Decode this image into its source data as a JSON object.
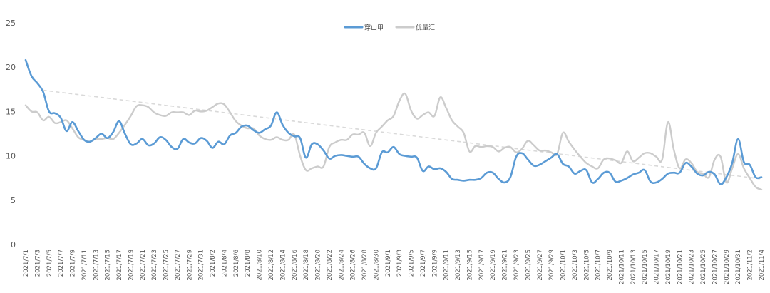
{
  "chart_data": {
    "type": "line",
    "title": "",
    "xlabel": "",
    "ylabel": "",
    "ylim": [
      0,
      25
    ],
    "yticks": [
      0,
      5,
      10,
      15,
      20,
      25
    ],
    "grid": false,
    "legend_position": "top-center",
    "x_start": "2021/7/1",
    "x_tick_labels": [
      "2021/7/1",
      "2021/7/3",
      "2021/7/5",
      "2021/7/7",
      "2021/7/9",
      "2021/7/11",
      "2021/7/13",
      "2021/7/15",
      "2021/7/17",
      "2021/7/19",
      "2021/7/21",
      "2021/7/23",
      "2021/7/25",
      "2021/7/27",
      "2021/7/29",
      "2021/7/31",
      "2021/8/2",
      "2021/8/4",
      "2021/8/6",
      "2021/8/8",
      "2021/8/10",
      "2021/8/12",
      "2021/8/14",
      "2021/8/16",
      "2021/8/18",
      "2021/8/20",
      "2021/8/22",
      "2021/8/24",
      "2021/8/26",
      "2021/8/28",
      "2021/8/30",
      "2021/9/1",
      "2021/9/3",
      "2021/9/5",
      "2021/9/7",
      "2021/9/9",
      "2021/9/11",
      "2021/9/13",
      "2021/9/15",
      "2021/9/17",
      "2021/9/19",
      "2021/9/21",
      "2021/9/23",
      "2021/9/25",
      "2021/9/27",
      "2021/9/29",
      "2021/10/1",
      "2021/10/3",
      "2021/10/5",
      "2021/10/7",
      "2021/10/9",
      "2021/10/11",
      "2021/10/13",
      "2021/10/15",
      "2021/10/17",
      "2021/10/19",
      "2021/10/21",
      "2021/10/23",
      "2021/10/25",
      "2021/10/27",
      "2021/10/29",
      "2021/10/31",
      "2021/11/2",
      "2021/11/4"
    ],
    "series": [
      {
        "name": "穿山甲",
        "color": "#5b9bd5",
        "values": [
          20.8,
          19.0,
          18.2,
          17.2,
          15.0,
          14.8,
          14.3,
          12.8,
          13.8,
          12.8,
          11.8,
          11.6,
          12.0,
          12.5,
          12.0,
          12.7,
          13.9,
          12.5,
          11.3,
          11.4,
          11.9,
          11.2,
          11.4,
          12.1,
          11.8,
          11.0,
          10.8,
          11.9,
          11.5,
          11.4,
          12.0,
          11.7,
          10.9,
          11.6,
          11.3,
          12.3,
          12.6,
          13.3,
          13.4,
          12.9,
          12.6,
          13.0,
          13.4,
          14.9,
          13.5,
          12.6,
          12.2,
          12.0,
          9.8,
          11.3,
          11.3,
          10.6,
          9.7,
          10.0,
          10.1,
          10.0,
          9.9,
          9.9,
          9.1,
          8.6,
          8.6,
          10.4,
          10.4,
          11.0,
          10.2,
          10.0,
          9.9,
          9.8,
          8.3,
          8.8,
          8.5,
          8.6,
          8.2,
          7.4,
          7.3,
          7.2,
          7.3,
          7.3,
          7.5,
          8.1,
          8.1,
          7.4,
          7.0,
          7.6,
          9.9,
          10.3,
          9.6,
          8.9,
          9.0,
          9.4,
          9.8,
          10.2,
          9.1,
          8.8,
          8.0,
          8.3,
          8.4,
          7.0,
          7.4,
          8.1,
          8.1,
          7.1,
          7.2,
          7.5,
          7.9,
          8.1,
          8.4,
          7.1,
          7.0,
          7.4,
          8.0,
          8.1,
          8.1,
          9.2,
          8.8,
          8.0,
          7.8,
          8.2,
          7.9,
          6.8,
          7.6,
          9.2,
          11.9,
          9.3,
          9.0,
          7.6,
          7.6
        ]
      },
      {
        "name": "优量汇",
        "color": "#cccccc",
        "values": [
          15.7,
          15.0,
          14.9,
          14.0,
          14.4,
          13.7,
          13.8,
          14.0,
          13.1,
          12.1,
          11.8,
          11.6,
          11.9,
          11.9,
          12.0,
          11.9,
          12.6,
          13.5,
          14.5,
          15.6,
          15.7,
          15.5,
          14.9,
          14.6,
          14.5,
          14.9,
          14.9,
          14.9,
          14.6,
          15.1,
          15.0,
          15.1,
          15.5,
          15.9,
          15.8,
          14.9,
          13.9,
          13.4,
          13.1,
          13.1,
          12.3,
          11.9,
          11.8,
          12.1,
          11.8,
          11.8,
          12.4,
          10.0,
          8.4,
          8.6,
          8.8,
          8.8,
          11.0,
          11.5,
          11.8,
          11.8,
          12.4,
          12.4,
          12.6,
          11.1,
          12.6,
          13.3,
          14.0,
          14.5,
          16.2,
          17.0,
          15.1,
          14.2,
          14.6,
          14.9,
          14.5,
          16.6,
          15.4,
          14.0,
          13.3,
          12.6,
          10.5,
          11.1,
          11.0,
          11.1,
          11.0,
          10.5,
          10.9,
          11.0,
          10.4,
          10.8,
          11.7,
          11.2,
          10.6,
          10.6,
          10.4,
          10.2,
          12.6,
          11.6,
          10.7,
          9.9,
          9.2,
          8.8,
          8.6,
          9.6,
          9.7,
          9.5,
          9.2,
          10.5,
          9.4,
          9.8,
          10.3,
          10.3,
          9.9,
          9.6,
          13.8,
          10.7,
          8.6,
          9.6,
          9.2,
          8.2,
          8.0,
          7.6,
          9.6,
          9.9,
          7.0,
          8.6,
          10.2,
          8.6,
          7.5,
          6.5,
          6.2
        ]
      }
    ],
    "trendline": {
      "series": "优量汇",
      "start": 17.4,
      "end": 7.4,
      "color": "#d9d9d9"
    }
  }
}
